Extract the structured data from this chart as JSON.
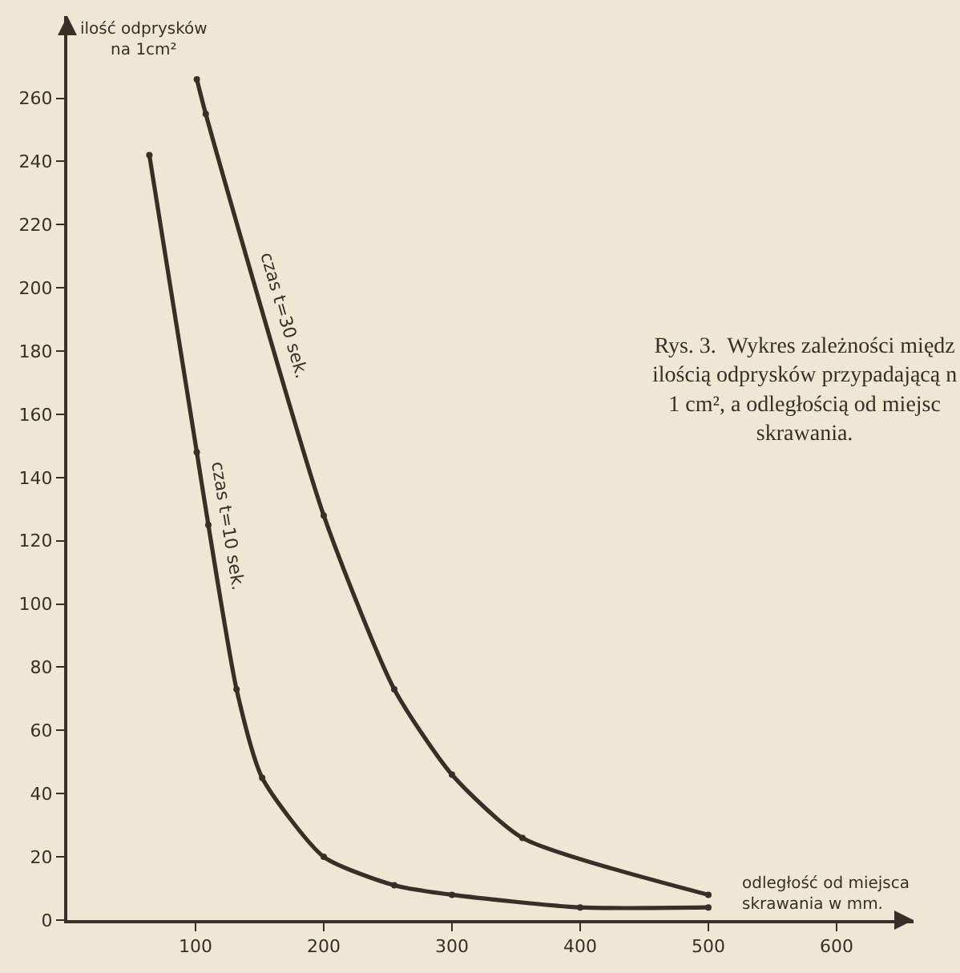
{
  "chart_data": {
    "type": "line",
    "xlabel": "odległość od miejsca\nskrawania w mm.",
    "ylabel": "ilość odprysków\nna 1cm²",
    "annotations": [
      "Rys. 3.  Wykres zależności międz\nilością odprysków przypadającą n\n1 cm², a odległością od miejsc\nskrawania."
    ],
    "series": [
      {
        "name": "czas t=30 sek.",
        "color": "#3a2e28",
        "x": [
          101,
          108,
          200,
          255,
          300,
          355,
          500
        ],
        "values": [
          266,
          255,
          128,
          73,
          46,
          26,
          8
        ]
      },
      {
        "name": "czas t=10 sek.",
        "color": "#3a2e28",
        "x": [
          64,
          101,
          110,
          132,
          152,
          200,
          255,
          300,
          400,
          500
        ],
        "values": [
          242,
          148,
          125,
          73,
          45,
          20,
          11,
          8,
          4,
          4
        ]
      }
    ],
    "xlim": [
      0,
      660
    ],
    "ylim": [
      0,
      286
    ],
    "xticks": [
      100,
      200,
      300,
      400,
      500,
      600
    ],
    "yticks": [
      0,
      20,
      40,
      60,
      80,
      100,
      120,
      140,
      160,
      180,
      200,
      220,
      240,
      260
    ],
    "grid": false,
    "legend": false,
    "marker": "circle",
    "line_style": "solid"
  }
}
